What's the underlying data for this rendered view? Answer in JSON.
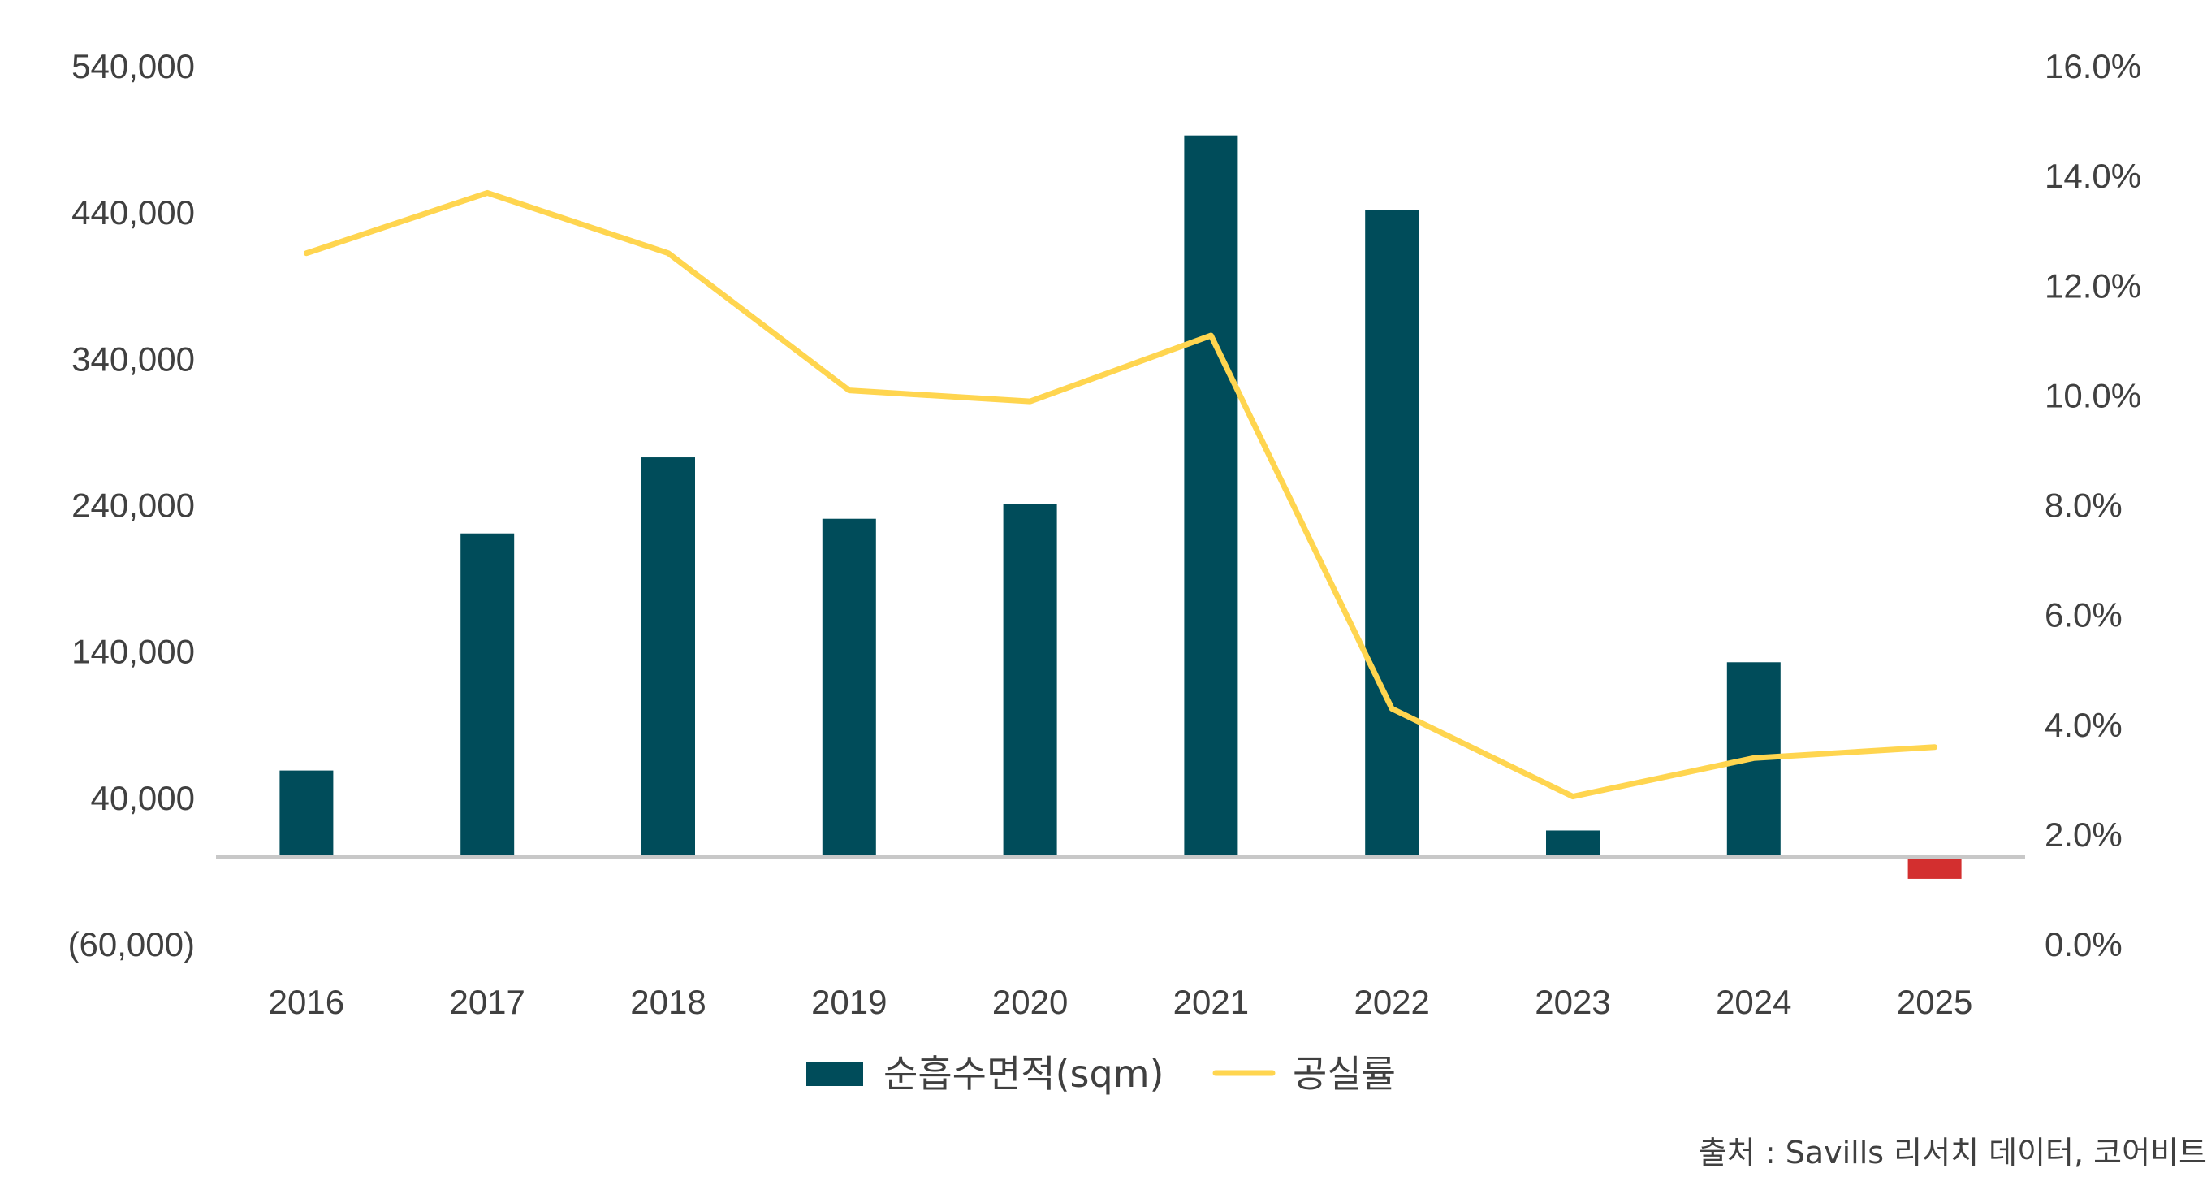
{
  "chart_data": {
    "type": "bar",
    "categories": [
      "2016",
      "2017",
      "2018",
      "2019",
      "2020",
      "2021",
      "2022",
      "2023",
      "2024",
      "2025"
    ],
    "series": [
      {
        "name": "순흡수면적(sqm)",
        "type": "bar",
        "axis": "left",
        "values": [
          59000,
          221000,
          273000,
          231000,
          241000,
          493000,
          442000,
          18000,
          133000,
          -15000
        ],
        "color": "#004C5A",
        "negative_color": "#D32F2F"
      },
      {
        "name": "공실률",
        "type": "line",
        "axis": "right",
        "values": [
          12.6,
          13.7,
          12.6,
          10.1,
          9.9,
          11.1,
          4.3,
          2.7,
          3.4,
          3.6
        ],
        "color": "#FFD54F"
      }
    ],
    "y_left": {
      "ticks": [
        -60000,
        40000,
        140000,
        240000,
        340000,
        440000,
        540000
      ],
      "tick_labels": [
        "(60,000)",
        "40,000",
        "140,000",
        "240,000",
        "340,000",
        "440,000",
        "540,000"
      ],
      "ylim": [
        -60000,
        540000
      ]
    },
    "y_right": {
      "ticks": [
        0,
        2,
        4,
        6,
        8,
        10,
        12,
        14,
        16
      ],
      "tick_labels": [
        "0.0%",
        "2.0%",
        "4.0%",
        "6.0%",
        "8.0%",
        "10.0%",
        "12.0%",
        "14.0%",
        "16.0%"
      ],
      "ylim": [
        0,
        16
      ]
    },
    "grid": false,
    "legend": "bottom-center",
    "source": "출처 : Savills 리서치 데이터, 코어비트"
  }
}
